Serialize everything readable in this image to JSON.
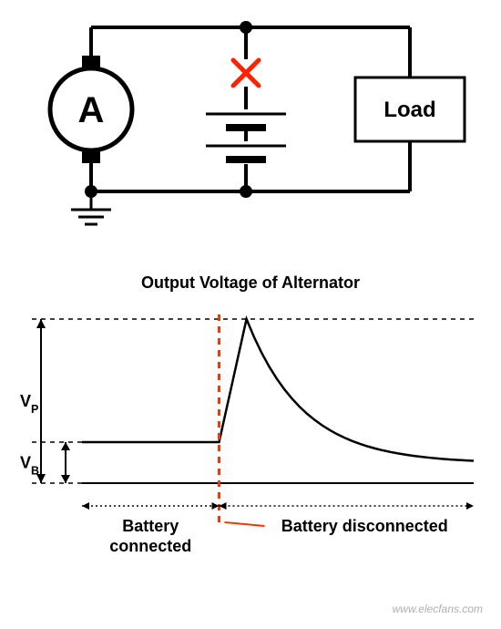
{
  "circuit": {
    "alternator_label": "A",
    "load_label": "Load",
    "wire_color": "#000000",
    "wire_width": 4,
    "node_fill": "#000000",
    "node_radius": 7,
    "alternator_fill": "#ffffff",
    "alternator_stroke": "#000000",
    "alternator_radius": 45,
    "alternator_font_size": 40,
    "load_font_size": 24,
    "load_box_fill": "#ffffff",
    "load_box_stroke": "#000000",
    "disconnect_x_color": "#ff2200",
    "disconnect_x_width": 5,
    "battery_plate_long": 44,
    "battery_plate_short": 22,
    "ground_color": "#000000"
  },
  "chart": {
    "title": "Output  Voltage of Alternator",
    "title_font_size": 18,
    "y_label_vp": "V",
    "y_label_vp_sub": "P",
    "y_label_vb": "V",
    "y_label_vb_sub": "B",
    "x_label_left": "Battery",
    "x_label_left2": "connected",
    "x_label_right": "Battery disconnected",
    "axis_color": "#000000",
    "axis_width": 2,
    "curve_color": "#000000",
    "curve_width": 2.5,
    "dash_color": "#000000",
    "dash_width": 1.5,
    "event_line_color": "#ff3300",
    "event_line_width": 3,
    "label_font_size": 18,
    "label_color": "#000000",
    "vb_level": 0.25,
    "vp_level": 1.0,
    "event_x": 0.35,
    "peak_x": 0.42,
    "tail_level": 0.12
  },
  "watermark": "www.elecfans.com"
}
